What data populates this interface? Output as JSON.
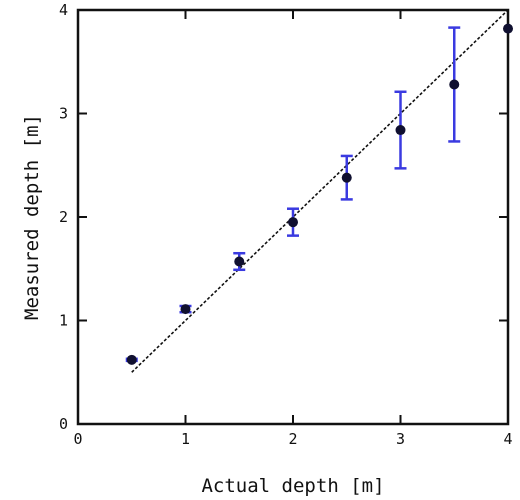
{
  "chart_data": {
    "type": "scatter",
    "title": "",
    "xlabel": "Actual depth [m]",
    "ylabel": "Measured depth [m]",
    "xlim": [
      0,
      4
    ],
    "ylim": [
      0,
      4
    ],
    "xticks": [
      0,
      1,
      2,
      3,
      4
    ],
    "yticks": [
      0,
      1,
      2,
      3,
      4
    ],
    "grid": false,
    "series": [
      {
        "x": [
          0.5,
          1.0,
          1.5,
          2.0,
          2.5,
          3.0,
          3.5,
          4.0
        ],
        "y": [
          0.62,
          1.11,
          1.57,
          1.95,
          2.38,
          2.84,
          3.28,
          3.82
        ],
        "error_low": [
          0.01,
          0.03,
          0.08,
          0.13,
          0.21,
          0.37,
          0.55,
          0.0
        ],
        "error_high": [
          0.01,
          0.03,
          0.08,
          0.13,
          0.21,
          0.37,
          0.55,
          0.0
        ],
        "marker_color": "#101030",
        "error_color": "#3a3ae0"
      }
    ],
    "reference_line": {
      "style": "dashed",
      "color": "#111111",
      "x": [
        0.5,
        4.0
      ],
      "y": [
        0.5,
        4.0
      ]
    }
  }
}
